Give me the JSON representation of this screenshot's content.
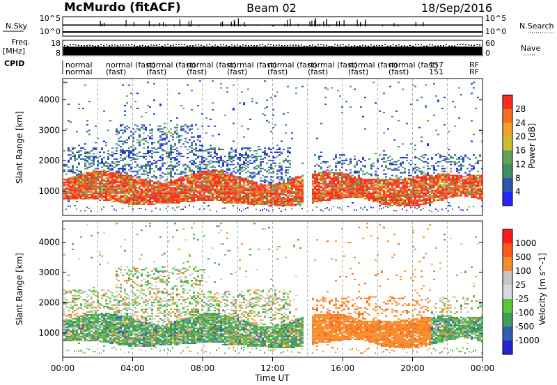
{
  "header": {
    "station": "McMurdo (fitACF)",
    "beam": "Beam 02",
    "date": "18/Sep/2016"
  },
  "noise_panel": {
    "left_label": "N.Sky",
    "right_label": "N.Search",
    "ticks_left": [
      "10^5",
      "10^0"
    ],
    "ticks_right": [
      "10^5",
      "10^0"
    ]
  },
  "freq_panel": {
    "left_label_1": "Freq.",
    "left_label_2": "[MHz]",
    "right_label": "Nave",
    "ticks_left": [
      "18",
      "8"
    ],
    "ticks_right": [
      "60",
      "0"
    ]
  },
  "cpid_panel": {
    "label": "CPID",
    "row1": [
      "normal",
      "normal (fast)",
      "normal (fast)",
      "normal (fast)",
      "normal (fast)",
      "normal (fast)",
      "normal (fast)",
      "normal (fast)",
      "normal (fast)",
      "157",
      "RF"
    ],
    "row2": [
      "normal",
      "(fast)",
      "(fast)",
      "(fast)",
      "(fast)",
      "(fast)",
      "(fast)",
      "(fast)",
      "(fast)",
      "151",
      "RF"
    ]
  },
  "x_axis": {
    "title": "Time UT",
    "ticks": [
      "00:00",
      "04:00",
      "08:00",
      "12:00",
      "16:00",
      "20:00",
      "00:00"
    ]
  },
  "colors": {
    "power_scale": [
      "#2424ff",
      "#2f55b0",
      "#3c8f63",
      "#5fa35a",
      "#c9c02f",
      "#f1a12a",
      "#f66e22",
      "#ff2a1c"
    ],
    "velocity_scale": [
      "#ff1a1a",
      "#ff5a1a",
      "#f68c28",
      "#c5c5c5",
      "#d9d9d9",
      "#5fc53a",
      "#3f9c5f",
      "#2f5fb0",
      "#2424d0"
    ]
  },
  "chart_data": [
    {
      "type": "heatmap",
      "title": "",
      "xlabel": "",
      "ylabel": "Slant Range [km]",
      "x_ticks": [
        "00:00",
        "04:00",
        "08:00",
        "12:00",
        "16:00",
        "20:00",
        "00:00"
      ],
      "y_ticks": [
        "1000",
        "2000",
        "3000",
        "4000"
      ],
      "ylim": [
        200,
        4700
      ],
      "xlim_hours": [
        0,
        24
      ],
      "colorbar_label": "Power [dB]",
      "colorbar_ticks": [
        "4",
        "8",
        "12",
        "16",
        "20",
        "24",
        "28"
      ],
      "gaps_hours": [
        [
          13.7,
          14.2
        ]
      ],
      "main_echo_band_km": [
        600,
        1600
      ],
      "upper_echo_km": [
        2000,
        3200
      ]
    },
    {
      "type": "heatmap",
      "title": "",
      "xlabel": "Time UT",
      "ylabel": "Slant Range [km]",
      "x_ticks": [
        "00:00",
        "04:00",
        "08:00",
        "12:00",
        "16:00",
        "20:00",
        "00:00"
      ],
      "y_ticks": [
        "1000",
        "2000",
        "3000",
        "4000"
      ],
      "ylim": [
        200,
        4700
      ],
      "xlim_hours": [
        0,
        24
      ],
      "colorbar_label": "Velocity [m s^-1]",
      "colorbar_ticks": [
        "1000",
        "500",
        "100",
        "25",
        "-25",
        "-100",
        "-500",
        "-1000"
      ],
      "gaps_hours": [
        [
          13.7,
          14.2
        ]
      ],
      "main_echo_band_km": [
        600,
        1600
      ],
      "upper_echo_km": [
        2000,
        3200
      ]
    }
  ]
}
